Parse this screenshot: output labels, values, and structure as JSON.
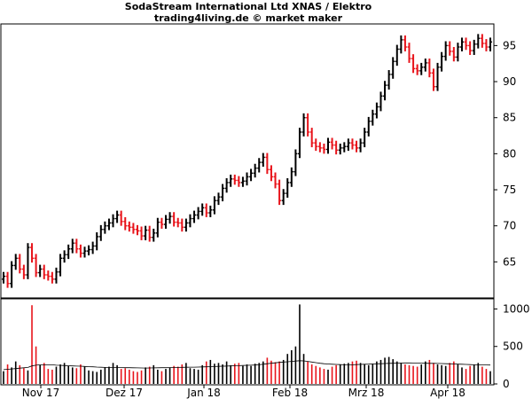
{
  "header": {
    "title": "SodaStream International Ltd XNAS / Elektro",
    "subtitle": "trading4living.de © market maker"
  },
  "colors": {
    "up": "#000000",
    "down": "#e8141b",
    "ma": "#000000"
  },
  "chart_data": [
    {
      "type": "ohlc",
      "title": "SodaStream International Ltd XNAS / Elektro",
      "ylim": [
        60,
        98
      ],
      "yticks": [
        65,
        70,
        75,
        80,
        85,
        90,
        95
      ],
      "x_tick_labels": [
        "Nov 17",
        "Dez 17",
        "Jan 18",
        "Feb 18",
        "Mrz 18",
        "Apr 18"
      ],
      "grid": false,
      "close_per_day": [
        63.0,
        62.0,
        64.5,
        65.5,
        64.0,
        63.2,
        67.0,
        65.5,
        63.5,
        64.0,
        63.2,
        63.0,
        62.6,
        63.6,
        65.5,
        66.0,
        66.8,
        67.6,
        66.8,
        66.2,
        66.5,
        66.7,
        67.2,
        68.5,
        69.5,
        70.0,
        70.4,
        71.0,
        71.5,
        70.6,
        70.0,
        69.8,
        69.5,
        69.3,
        68.6,
        69.4,
        68.4,
        69.0,
        70.5,
        70.2,
        70.9,
        71.3,
        70.5,
        70.4,
        69.8,
        70.4,
        71.0,
        71.5,
        72.0,
        72.5,
        71.8,
        72.2,
        73.5,
        74.0,
        75.2,
        76.0,
        76.5,
        76.3,
        76.0,
        76.2,
        76.8,
        77.3,
        78.0,
        78.8,
        79.5,
        77.8,
        76.8,
        75.8,
        73.5,
        74.5,
        76.0,
        77.5,
        80.0,
        83.0,
        85.0,
        83.0,
        81.5,
        81.0,
        80.8,
        80.6,
        81.6,
        81.2,
        80.5,
        80.8,
        81.0,
        81.5,
        81.2,
        80.8,
        81.5,
        83.0,
        84.5,
        85.5,
        86.5,
        88.0,
        89.5,
        91.0,
        92.8,
        94.5,
        95.8,
        94.8,
        93.2,
        91.8,
        91.5,
        92.0,
        92.6,
        91.2,
        89.3,
        92.0,
        93.5,
        95.0,
        94.2,
        93.4,
        94.8,
        95.5,
        95.0,
        94.3,
        95.2,
        96.0,
        95.3,
        94.8,
        95.5
      ],
      "volume_ticks": [
        0,
        500,
        1000
      ],
      "volume_per_day": [
        170,
        260,
        220,
        300,
        250,
        210,
        180,
        1050,
        500,
        250,
        280,
        200,
        190,
        230,
        260,
        280,
        240,
        220,
        210,
        260,
        230,
        180,
        170,
        160,
        190,
        220,
        230,
        280,
        250,
        200,
        210,
        190,
        170,
        160,
        180,
        220,
        230,
        250,
        190,
        170,
        200,
        220,
        240,
        230,
        260,
        280,
        210,
        200,
        190,
        250,
        300,
        320,
        270,
        280,
        260,
        300,
        250,
        270,
        280,
        240,
        260,
        240,
        270,
        280,
        300,
        350,
        310,
        290,
        300,
        320,
        400,
        450,
        500,
        1060,
        400,
        300,
        260,
        240,
        220,
        200,
        190,
        230,
        250,
        260,
        270,
        280,
        300,
        310,
        280,
        260,
        250,
        270,
        300,
        320,
        350,
        360,
        330,
        300,
        280,
        260,
        250,
        240,
        230,
        260,
        300,
        320,
        280,
        260,
        250,
        240,
        280,
        300,
        260,
        220,
        200,
        240,
        260,
        280,
        230,
        200,
        170
      ],
      "volume_moving_average_per_day": [
        190,
        195,
        200,
        205,
        210,
        215,
        220,
        240,
        250,
        255,
        255,
        255,
        255,
        250,
        248,
        245,
        242,
        240,
        238,
        236,
        233,
        230,
        228,
        225,
        222,
        220,
        220,
        218,
        218,
        218,
        217,
        216,
        215,
        214,
        213,
        212,
        213,
        214,
        215,
        216,
        217,
        218,
        219,
        220,
        221,
        222,
        223,
        224,
        225,
        227,
        228,
        230,
        232,
        234,
        236,
        238,
        240,
        242,
        244,
        246,
        248,
        250,
        252,
        256,
        262,
        270,
        276,
        282,
        288,
        292,
        296,
        300,
        305,
        310,
        308,
        300,
        292,
        284,
        276,
        270,
        266,
        262,
        260,
        258,
        256,
        256,
        256,
        258,
        260,
        262,
        264,
        266,
        268,
        270,
        272,
        274,
        276,
        278,
        279,
        280,
        280,
        279,
        278,
        277,
        276,
        275,
        274,
        273,
        272,
        270,
        268,
        266,
        264,
        262,
        260,
        258,
        256,
        255,
        254,
        253,
        252
      ]
    }
  ]
}
